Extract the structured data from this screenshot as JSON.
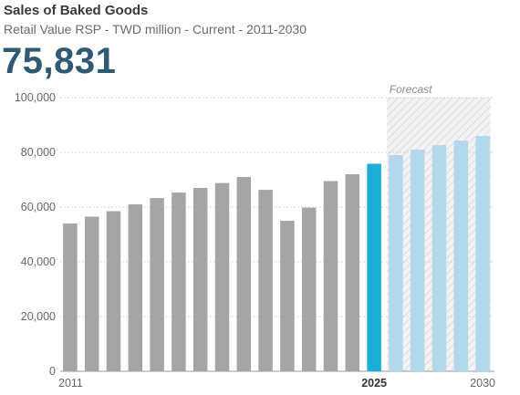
{
  "header": {
    "title": "Sales of Baked Goods",
    "subtitle": "Retail Value RSP - TWD million - Current - 2011-2030",
    "headline_value": "75,831"
  },
  "chart_data": {
    "type": "bar",
    "categories": [
      "2011",
      "2012",
      "2013",
      "2014",
      "2015",
      "2016",
      "2017",
      "2018",
      "2019",
      "2020",
      "2021",
      "2022",
      "2023",
      "2024",
      "2025",
      "2026",
      "2027",
      "2028",
      "2029",
      "2030"
    ],
    "values": [
      54000,
      56500,
      58500,
      61000,
      63300,
      65300,
      67000,
      68800,
      71000,
      66300,
      55000,
      59800,
      69500,
      72000,
      75831,
      79000,
      81000,
      82600,
      84300,
      86000
    ],
    "x_tick_labels": [
      "2011",
      "2025",
      "2030"
    ],
    "y_ticks": [
      "0",
      "20,000",
      "40,000",
      "60,000",
      "80,000",
      "100,000"
    ],
    "ylim": [
      0,
      100000
    ],
    "forecast_label": "Forecast",
    "current_year": "2025",
    "forecast_start": "2026",
    "colors": {
      "historical": "#a5a5a5",
      "current": "#1aaed8",
      "forecast": "#b1d8eb",
      "gridline": "#c9c9c9",
      "axis_text": "#666666",
      "title": "#3a3a3a",
      "headline": "#2e5a72"
    }
  }
}
